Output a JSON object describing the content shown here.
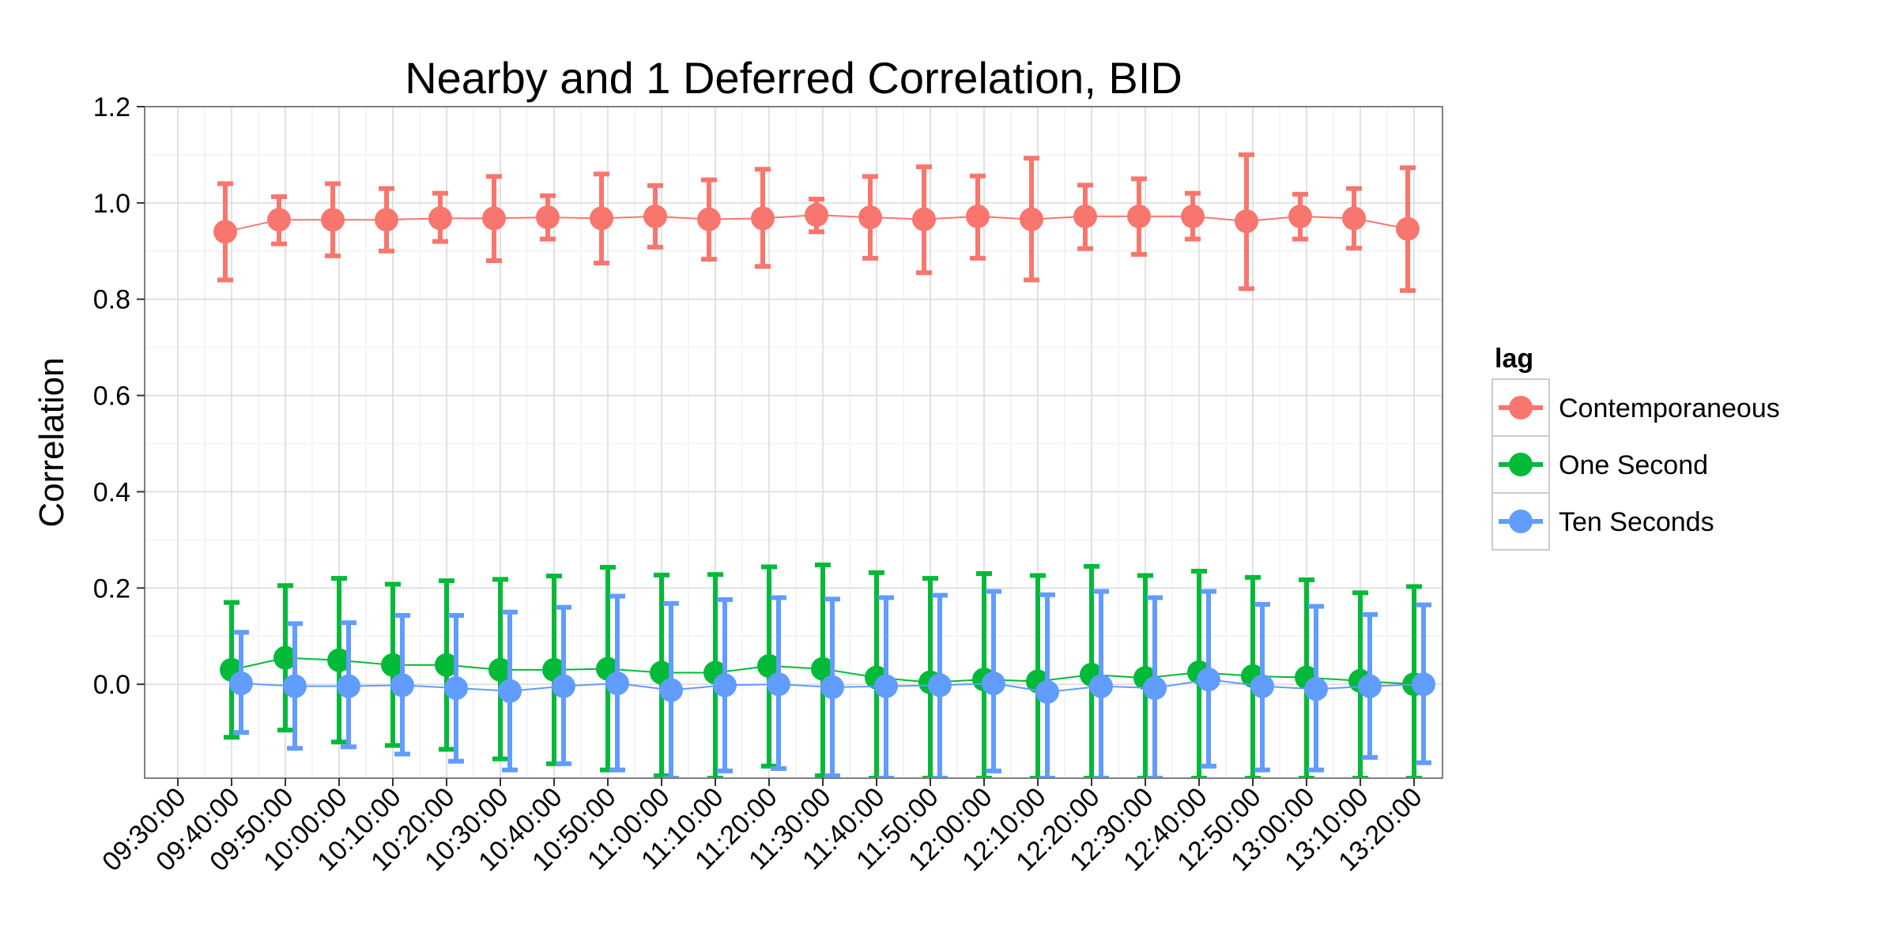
{
  "chart_data": {
    "type": "scatter",
    "title": "Nearby and 1 Deferred Correlation, BID",
    "xlabel": "",
    "ylabel": "Correlation",
    "x": [
      "09:30:00",
      "09:40:00",
      "09:50:00",
      "10:00:00",
      "10:10:00",
      "10:20:00",
      "10:30:00",
      "10:40:00",
      "10:50:00",
      "11:00:00",
      "11:10:00",
      "11:20:00",
      "11:30:00",
      "11:40:00",
      "11:50:00",
      "12:00:00",
      "12:10:00",
      "12:20:00",
      "12:30:00",
      "12:40:00",
      "12:50:00",
      "13:00:00",
      "13:10:00",
      "13:20:00"
    ],
    "x_tick_labels": [
      "09:30:00",
      "09:40:00",
      "09:50:00",
      "10:00:00",
      "10:10:00",
      "10:20:00",
      "10:30:00",
      "10:40:00",
      "10:50:00",
      "11:00:00",
      "11:10:00",
      "11:20:00",
      "11:30:00",
      "11:40:00",
      "11:50:00",
      "12:00:00",
      "12:10:00",
      "12:20:00",
      "12:30:00",
      "12:40:00",
      "12:50:00",
      "13:00:00",
      "13:10:00",
      "13:20:00"
    ],
    "y_tick_labels": [
      "0.0",
      "0.2",
      "0.4",
      "0.6",
      "0.8",
      "1.0",
      "1.2"
    ],
    "y_ticks": [
      0.0,
      0.2,
      0.4,
      0.6,
      0.8,
      1.0,
      1.2
    ],
    "ylim": [
      -0.195,
      1.2
    ],
    "grid": true,
    "legend": {
      "title": "lag",
      "position": "right"
    },
    "series": [
      {
        "name": "Contemporaneous",
        "color": "#F8766D",
        "x": [
          "09:40:00",
          "09:50:00",
          "10:00:00",
          "10:10:00",
          "10:20:00",
          "10:30:00",
          "10:40:00",
          "10:50:00",
          "11:00:00",
          "11:10:00",
          "11:20:00",
          "11:30:00",
          "11:40:00",
          "11:50:00",
          "12:00:00",
          "12:10:00",
          "12:20:00",
          "12:30:00",
          "12:40:00",
          "12:50:00",
          "13:00:00",
          "13:10:00",
          "13:20:00"
        ],
        "y": [
          0.94,
          0.965,
          0.965,
          0.965,
          0.968,
          0.968,
          0.97,
          0.968,
          0.972,
          0.966,
          0.968,
          0.975,
          0.97,
          0.966,
          0.972,
          0.966,
          0.972,
          0.972,
          0.972,
          0.962,
          0.972,
          0.968,
          0.946
        ],
        "ymin": [
          0.84,
          0.915,
          0.89,
          0.9,
          0.92,
          0.88,
          0.925,
          0.875,
          0.908,
          0.883,
          0.868,
          0.94,
          0.885,
          0.855,
          0.885,
          0.84,
          0.905,
          0.893,
          0.925,
          0.822,
          0.925,
          0.906,
          0.818
        ],
        "ymax": [
          1.04,
          1.013,
          1.04,
          1.03,
          1.02,
          1.055,
          1.015,
          1.06,
          1.036,
          1.048,
          1.07,
          1.008,
          1.055,
          1.075,
          1.056,
          1.093,
          1.037,
          1.05,
          1.02,
          1.1,
          1.018,
          1.03,
          1.073
        ]
      },
      {
        "name": "One Second",
        "color": "#00BA38",
        "x": [
          "09:40:00",
          "09:50:00",
          "10:00:00",
          "10:10:00",
          "10:20:00",
          "10:30:00",
          "10:40:00",
          "10:50:00",
          "11:00:00",
          "11:10:00",
          "11:20:00",
          "11:30:00",
          "11:40:00",
          "11:50:00",
          "12:00:00",
          "12:10:00",
          "12:20:00",
          "12:30:00",
          "12:40:00",
          "12:50:00",
          "13:00:00",
          "13:10:00",
          "13:20:00"
        ],
        "y": [
          0.03,
          0.055,
          0.05,
          0.04,
          0.04,
          0.03,
          0.03,
          0.032,
          0.024,
          0.024,
          0.038,
          0.032,
          0.014,
          0.004,
          0.01,
          0.006,
          0.02,
          0.013,
          0.025,
          0.017,
          0.014,
          0.007,
          0.0
        ],
        "ymin": [
          -0.11,
          -0.095,
          -0.12,
          -0.127,
          -0.135,
          -0.155,
          -0.165,
          -0.178,
          -0.19,
          -0.195,
          -0.17,
          -0.19,
          -0.195,
          -0.195,
          -0.195,
          -0.195,
          -0.195,
          -0.195,
          -0.195,
          -0.195,
          -0.195,
          -0.195,
          -0.195
        ],
        "ymax": [
          0.17,
          0.205,
          0.22,
          0.208,
          0.215,
          0.218,
          0.225,
          0.243,
          0.227,
          0.228,
          0.244,
          0.248,
          0.232,
          0.22,
          0.23,
          0.226,
          0.245,
          0.226,
          0.235,
          0.222,
          0.217,
          0.19,
          0.203
        ],
        "clipped_below_axis": true
      },
      {
        "name": "Ten Seconds",
        "color": "#619CFF",
        "x": [
          "09:40:00",
          "09:50:00",
          "10:00:00",
          "10:10:00",
          "10:20:00",
          "10:30:00",
          "10:40:00",
          "10:50:00",
          "11:00:00",
          "11:10:00",
          "11:20:00",
          "11:30:00",
          "11:40:00",
          "11:50:00",
          "12:00:00",
          "12:10:00",
          "12:20:00",
          "12:30:00",
          "12:40:00",
          "12:50:00",
          "13:00:00",
          "13:10:00",
          "13:20:00"
        ],
        "y": [
          0.002,
          -0.004,
          -0.004,
          -0.002,
          -0.008,
          -0.014,
          -0.004,
          0.002,
          -0.012,
          -0.002,
          0.0,
          -0.006,
          -0.004,
          -0.002,
          0.002,
          -0.016,
          -0.004,
          -0.008,
          0.01,
          -0.004,
          -0.01,
          -0.004,
          0.0
        ],
        "ymin": [
          -0.1,
          -0.133,
          -0.13,
          -0.145,
          -0.16,
          -0.178,
          -0.165,
          -0.178,
          -0.195,
          -0.18,
          -0.175,
          -0.19,
          -0.195,
          -0.195,
          -0.18,
          -0.195,
          -0.195,
          -0.195,
          -0.17,
          -0.178,
          -0.178,
          -0.152,
          -0.163
        ],
        "ymax": [
          0.108,
          0.126,
          0.128,
          0.143,
          0.143,
          0.15,
          0.16,
          0.183,
          0.168,
          0.176,
          0.18,
          0.177,
          0.18,
          0.185,
          0.193,
          0.186,
          0.193,
          0.18,
          0.193,
          0.166,
          0.162,
          0.145,
          0.165
        ],
        "clipped_below_axis": true
      }
    ]
  }
}
